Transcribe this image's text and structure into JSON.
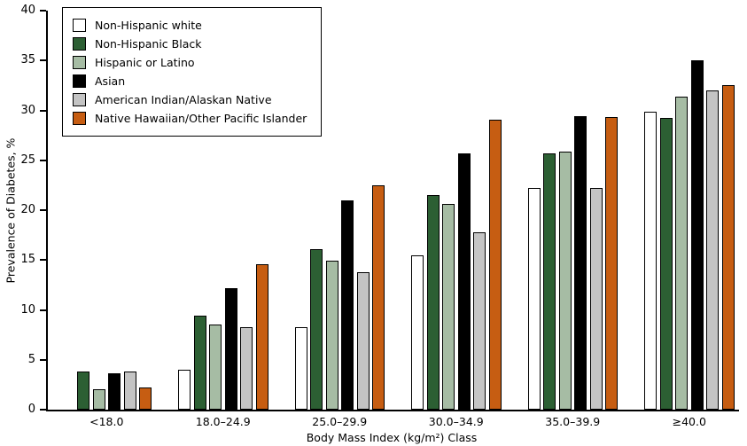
{
  "chart_data": {
    "type": "bar",
    "title": "",
    "xlabel": "Body Mass Index (kg/m²) Class",
    "ylabel": "Prevalence of Diabetes, %",
    "ylim": [
      0,
      40
    ],
    "yticks": [
      0,
      5,
      10,
      15,
      20,
      25,
      30,
      35,
      40
    ],
    "grid": false,
    "legend_position": "top-left",
    "bar_outline_color": "#000000",
    "categories": [
      "<18.0",
      "18.0–24.9",
      "25.0–29.9",
      "30.0–34.9",
      "35.0–39.9",
      "≥40.0"
    ],
    "series": [
      {
        "name": "Non-Hispanic white",
        "color": "#ffffff",
        "values": [
          null,
          4.0,
          8.3,
          15.5,
          22.2,
          29.9
        ]
      },
      {
        "name": "Non-Hispanic Black",
        "color": "#2c5f33",
        "values": [
          3.8,
          9.4,
          16.1,
          21.5,
          25.7,
          29.2
        ]
      },
      {
        "name": "Hispanic or Latino",
        "color": "#a6bca4",
        "values": [
          2.0,
          8.5,
          14.9,
          20.6,
          25.9,
          31.4
        ]
      },
      {
        "name": "Asian",
        "color": "#000000",
        "values": [
          3.6,
          12.2,
          21.0,
          25.7,
          29.4,
          35.0
        ]
      },
      {
        "name": "American Indian/Alaskan Native",
        "color": "#c4c4c4",
        "values": [
          3.8,
          8.3,
          13.8,
          17.8,
          22.2,
          32.0
        ]
      },
      {
        "name": "Native Hawaiian/Other Pacific Islander",
        "color": "#c65d12",
        "values": [
          2.2,
          14.6,
          22.5,
          29.1,
          29.3,
          32.5
        ]
      }
    ]
  }
}
